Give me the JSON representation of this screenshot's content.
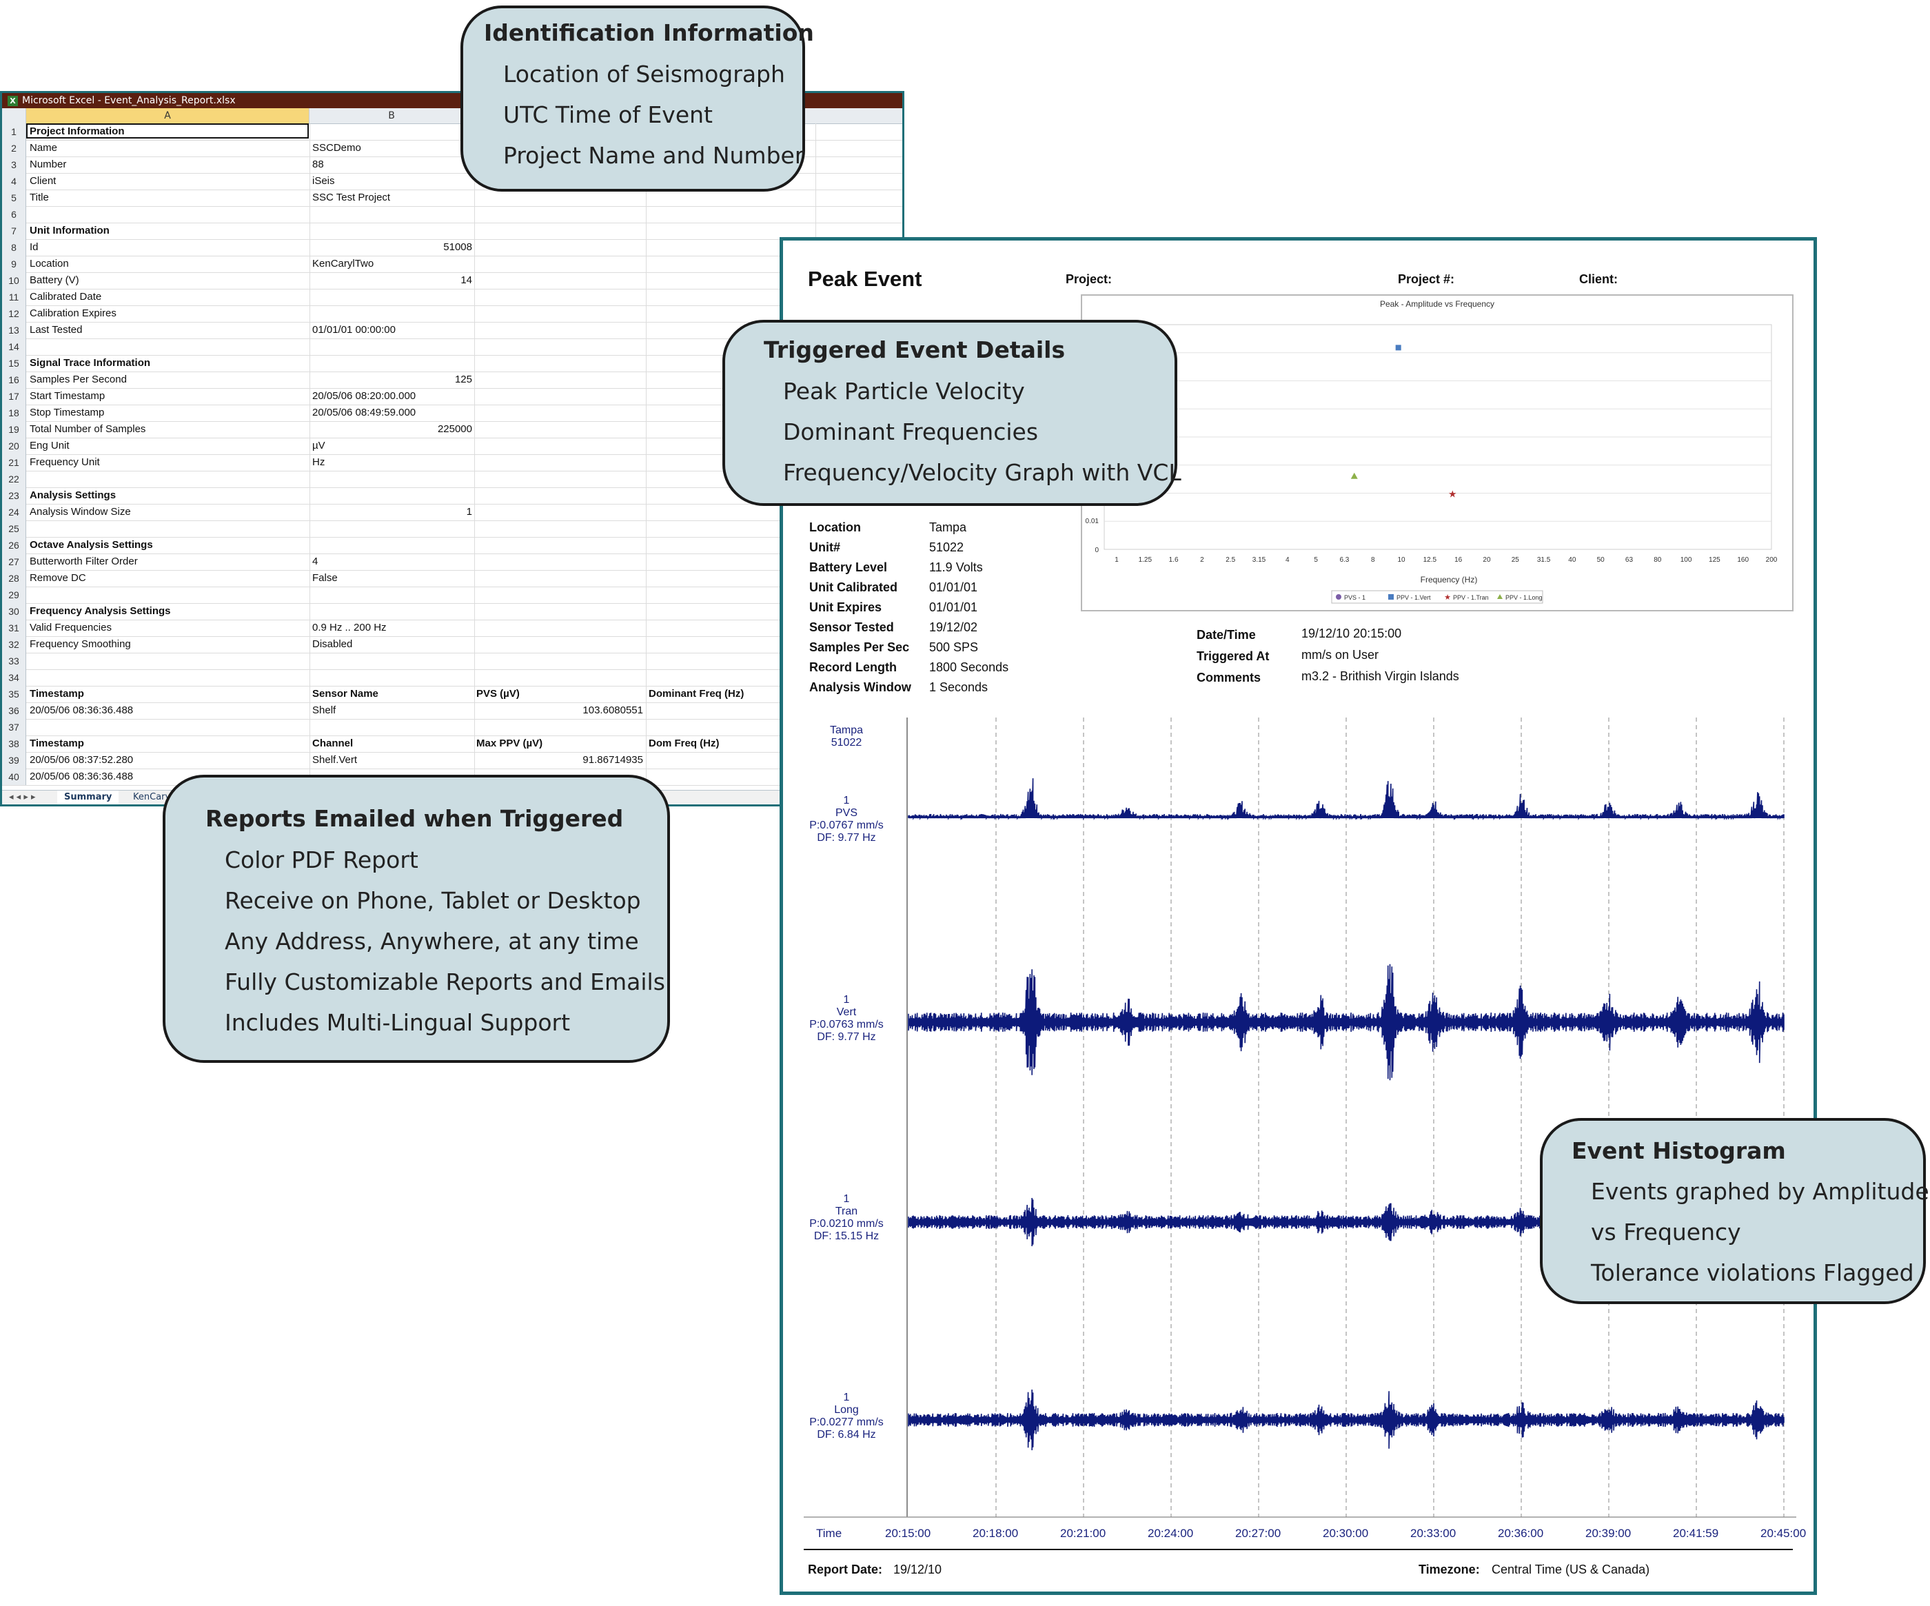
{
  "excel": {
    "title": "Microsoft Excel - Event_Analysis_Report.xlsx",
    "icon": "excel-icon",
    "columns": [
      "A",
      "B"
    ],
    "rows": [
      {
        "n": "1",
        "a": "Project Information",
        "b": "",
        "c": "",
        "d": "",
        "bold": true
      },
      {
        "n": "2",
        "a": "Name",
        "b": "SSCDemo",
        "c": "",
        "d": ""
      },
      {
        "n": "3",
        "a": "Number",
        "b": "88",
        "c": "",
        "d": ""
      },
      {
        "n": "4",
        "a": "Client",
        "b": "iSeis",
        "c": "",
        "d": ""
      },
      {
        "n": "5",
        "a": "Title",
        "b": "SSC Test Project",
        "c": "",
        "d": ""
      },
      {
        "n": "6",
        "a": "",
        "b": "",
        "c": "",
        "d": ""
      },
      {
        "n": "7",
        "a": "Unit Information",
        "b": "",
        "c": "",
        "d": "",
        "bold": true
      },
      {
        "n": "8",
        "a": "Id",
        "b": "51008",
        "c": "",
        "d": "",
        "bnum": true
      },
      {
        "n": "9",
        "a": "Location",
        "b": "KenCarylTwo",
        "c": "",
        "d": ""
      },
      {
        "n": "10",
        "a": "Battery (V)",
        "b": "14",
        "c": "",
        "d": "",
        "bnum": true
      },
      {
        "n": "11",
        "a": "Calibrated Date",
        "b": "",
        "c": "",
        "d": ""
      },
      {
        "n": "12",
        "a": "Calibration Expires",
        "b": "",
        "c": "",
        "d": ""
      },
      {
        "n": "13",
        "a": "Last Tested",
        "b": "01/01/01 00:00:00",
        "c": "",
        "d": ""
      },
      {
        "n": "14",
        "a": "",
        "b": "",
        "c": "",
        "d": ""
      },
      {
        "n": "15",
        "a": "Signal Trace Information",
        "b": "",
        "c": "",
        "d": "",
        "bold": true
      },
      {
        "n": "16",
        "a": "Samples Per Second",
        "b": "125",
        "c": "",
        "d": "",
        "bnum": true
      },
      {
        "n": "17",
        "a": "Start Timestamp",
        "b": "20/05/06 08:20:00.000",
        "c": "",
        "d": ""
      },
      {
        "n": "18",
        "a": "Stop Timestamp",
        "b": "20/05/06 08:49:59.000",
        "c": "",
        "d": ""
      },
      {
        "n": "19",
        "a": "Total Number of Samples",
        "b": "225000",
        "c": "",
        "d": "",
        "bnum": true
      },
      {
        "n": "20",
        "a": "Eng Unit",
        "b": "µV",
        "c": "",
        "d": ""
      },
      {
        "n": "21",
        "a": "Frequency Unit",
        "b": "Hz",
        "c": "",
        "d": ""
      },
      {
        "n": "22",
        "a": "",
        "b": "",
        "c": "",
        "d": ""
      },
      {
        "n": "23",
        "a": "Analysis Settings",
        "b": "",
        "c": "",
        "d": "",
        "bold": true
      },
      {
        "n": "24",
        "a": "Analysis Window Size",
        "b": "1",
        "c": "",
        "d": "",
        "bnum": true
      },
      {
        "n": "25",
        "a": "",
        "b": "",
        "c": "",
        "d": ""
      },
      {
        "n": "26",
        "a": "Octave Analysis Settings",
        "b": "",
        "c": "",
        "d": "",
        "bold": true
      },
      {
        "n": "27",
        "a": "Butterworth Filter Order",
        "b": "4",
        "c": "",
        "d": ""
      },
      {
        "n": "28",
        "a": "Remove DC",
        "b": "False",
        "c": "",
        "d": ""
      },
      {
        "n": "29",
        "a": "",
        "b": "",
        "c": "",
        "d": ""
      },
      {
        "n": "30",
        "a": "Frequency Analysis Settings",
        "b": "",
        "c": "",
        "d": "",
        "bold": true
      },
      {
        "n": "31",
        "a": "Valid Frequencies",
        "b": "0.9 Hz .. 200 Hz",
        "c": "",
        "d": ""
      },
      {
        "n": "32",
        "a": "Frequency Smoothing",
        "b": "Disabled",
        "c": "",
        "d": ""
      },
      {
        "n": "33",
        "a": "",
        "b": "",
        "c": "",
        "d": ""
      },
      {
        "n": "34",
        "a": "",
        "b": "",
        "c": "",
        "d": ""
      },
      {
        "n": "35",
        "a": "Timestamp",
        "b": "Sensor Name",
        "c": "PVS (µV)",
        "d": "Dominant Freq (Hz)",
        "bold": true
      },
      {
        "n": "36",
        "a": "20/05/06 08:36:36.488",
        "b": "Shelf",
        "c": "103.6080551",
        "d": "",
        "cnum": true
      },
      {
        "n": "37",
        "a": "",
        "b": "",
        "c": "",
        "d": ""
      },
      {
        "n": "38",
        "a": "Timestamp",
        "b": "Channel",
        "c": "Max PPV (µV)",
        "d": "Dom Freq (Hz)",
        "bold": true
      },
      {
        "n": "39",
        "a": "20/05/06 08:37:52.280",
        "b": "Shelf.Vert",
        "c": "91.86714935",
        "d": "",
        "cnum": true
      },
      {
        "n": "40",
        "a": "20/05/06 08:36:36.488",
        "b": "",
        "c": "",
        "d": "",
        "cnum": true
      }
    ],
    "sheet_tabs": [
      "Summary",
      "KenCarylT"
    ]
  },
  "report": {
    "title": "Peak Event",
    "project_label": "Project:",
    "project_num_label": "Project #:",
    "client_label": "Client:",
    "unit_info": [
      {
        "label": "Location",
        "value": "Tampa"
      },
      {
        "label": "Unit#",
        "value": "51022"
      },
      {
        "label": "Battery Level",
        "value": "11.9 Volts"
      },
      {
        "label": "Unit Calibrated",
        "value": "01/01/01"
      },
      {
        "label": "Unit Expires",
        "value": "01/01/01"
      },
      {
        "label": "Sensor Tested",
        "value": "19/12/02"
      },
      {
        "label": "Samples Per Sec",
        "value": "500 SPS"
      },
      {
        "label": "Record Length",
        "value": "1800 Seconds"
      },
      {
        "label": "Analysis Window",
        "value": "1 Seconds"
      }
    ],
    "event_info": [
      {
        "label": "Date/Time",
        "value": "19/12/10 20:15:00"
      },
      {
        "label": "Triggered At",
        "value": "mm/s on User"
      },
      {
        "label": "Comments",
        "value": "m3.2 - Brithish Virgin Islands"
      }
    ],
    "station": {
      "name": "Tampa",
      "unit": "51022"
    },
    "traces": [
      {
        "n": "1",
        "name": "PVS",
        "peak": "P:0.0767 mm/s",
        "df": "DF: 9.77 Hz"
      },
      {
        "n": "1",
        "name": "Vert",
        "peak": "P:0.0763 mm/s",
        "df": "DF: 9.77 Hz"
      },
      {
        "n": "1",
        "name": "Tran",
        "peak": "P:0.0210 mm/s",
        "df": "DF: 15.15 Hz"
      },
      {
        "n": "1",
        "name": "Long",
        "peak": "P:0.0277 mm/s",
        "df": "DF: 6.84 Hz"
      }
    ],
    "time_label": "Time",
    "time_ticks": [
      "20:15:00",
      "20:18:00",
      "20:21:00",
      "20:24:00",
      "20:27:00",
      "20:30:00",
      "20:33:00",
      "20:36:00",
      "20:39:00",
      "20:41:59",
      "20:45:00"
    ],
    "report_date_label": "Report Date:",
    "report_date": "19/12/10",
    "timezone_label": "Timezone:",
    "timezone": "Central Time (US & Canada)"
  },
  "chart_data": {
    "type": "scatter",
    "title": "Peak - Amplitude vs Frequency",
    "xlabel": "Frequency (Hz)",
    "ylabel": "",
    "x_scale": "log",
    "x_ticks": [
      "1",
      "1.25",
      "1.6",
      "2",
      "2.5",
      "3.15",
      "4",
      "5",
      "6.3",
      "8",
      "10",
      "12.5",
      "16",
      "20",
      "25",
      "31.5",
      "40",
      "50",
      "63",
      "80",
      "100",
      "125",
      "160",
      "200"
    ],
    "y_ticks": [
      "0",
      "0.01"
    ],
    "legend": "bottom",
    "grid": true,
    "series": [
      {
        "name": "PVS - 1",
        "marker": "circle",
        "color": "#7b5ea7",
        "points": []
      },
      {
        "name": "PPV - 1.Vert",
        "marker": "square",
        "color": "#4a7cc0",
        "points": [
          {
            "x": 9.77,
            "y": 0.0763
          }
        ]
      },
      {
        "name": "PPV - 1.Tran",
        "marker": "star",
        "color": "#b03030",
        "points": [
          {
            "x": 15.15,
            "y": 0.021
          }
        ]
      },
      {
        "name": "PPV - 1.Long",
        "marker": "triangle",
        "color": "#8db04a",
        "points": [
          {
            "x": 6.84,
            "y": 0.0277
          }
        ]
      }
    ]
  },
  "callouts": {
    "identification": {
      "title": "Identification Information",
      "items": [
        "Location of Seismograph",
        "UTC Time of Event",
        "Project Name and Number"
      ]
    },
    "triggered": {
      "title": "Triggered Event Details",
      "items": [
        "Peak Particle Velocity",
        "Dominant Frequencies",
        "Frequency/Velocity Graph with VCL"
      ]
    },
    "emailed": {
      "title": "Reports Emailed when Triggered",
      "items": [
        "Color PDF Report",
        "Receive on Phone, Tablet or Desktop",
        "Any Address, Anywhere, at any time",
        "Fully Customizable Reports and Emails",
        "Includes Multi-Lingual Support"
      ]
    },
    "histogram": {
      "title": "Event Histogram",
      "items": [
        "Events graphed by Amplitude",
        "vs Frequency",
        "Tolerance violations Flagged"
      ]
    }
  }
}
